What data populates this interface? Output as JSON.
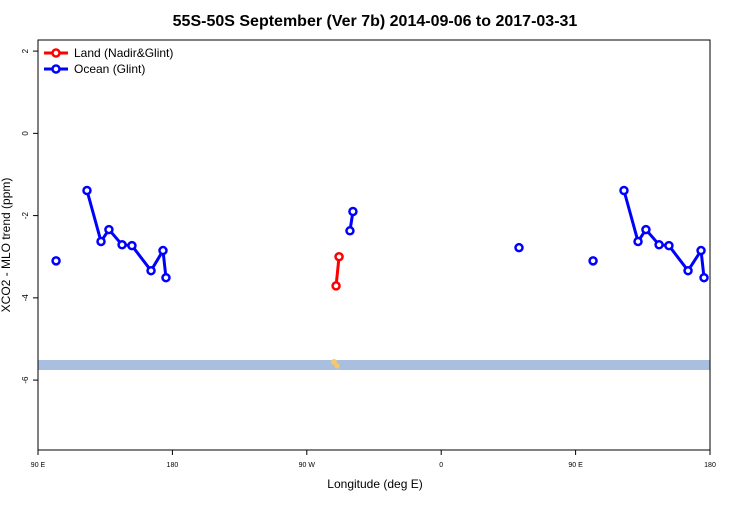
{
  "chart_data": {
    "type": "line",
    "title": "55S-50S September (Ver 7b)   2014-09-06 to 2017-03-31",
    "x_label": "Longitude (deg E)",
    "y_label": "XCO2 - MLO trend (ppm)",
    "xlim": [
      90,
      540
    ],
    "xticks": [
      {
        "value": 90,
        "label": "90 E"
      },
      {
        "value": 180,
        "label": "180"
      },
      {
        "value": 270,
        "label": "90 W"
      },
      {
        "value": 360,
        "label": "0"
      },
      {
        "value": 450,
        "label": "90 E"
      },
      {
        "value": 540,
        "label": "180"
      }
    ],
    "ylim": [
      -7.7,
      2.27
    ],
    "yticks": [
      -6,
      -4,
      -2,
      0,
      2
    ],
    "legend": "top-left",
    "series": [
      {
        "name": "Land (Nadir&Glint)",
        "color": "#ff0000",
        "x": [
          289.6,
          291.6
        ],
        "values": [
          -3.71,
          -3.0
        ]
      },
      {
        "name": "Ocean (Glint)",
        "color": "#0000ff",
        "x": [
          102.1,
          null,
          122.8,
          132.2,
          137.5,
          146.3,
          152.9,
          165.7,
          173.7,
          175.7,
          null,
          298.9,
          300.9,
          null,
          412.1,
          null,
          461.7,
          null,
          482.4,
          491.8,
          497.1,
          505.9,
          512.5,
          525.3,
          534.0,
          536.0
        ],
        "values": [
          -3.1,
          null,
          -1.39,
          -2.63,
          -2.34,
          -2.71,
          -2.73,
          -3.34,
          -2.85,
          -3.51,
          null,
          -2.37,
          -1.9,
          null,
          -2.78,
          null,
          -3.1,
          null,
          -1.39,
          -2.63,
          -2.34,
          -2.71,
          -2.73,
          -3.34,
          -2.85,
          -3.51
        ]
      }
    ]
  }
}
